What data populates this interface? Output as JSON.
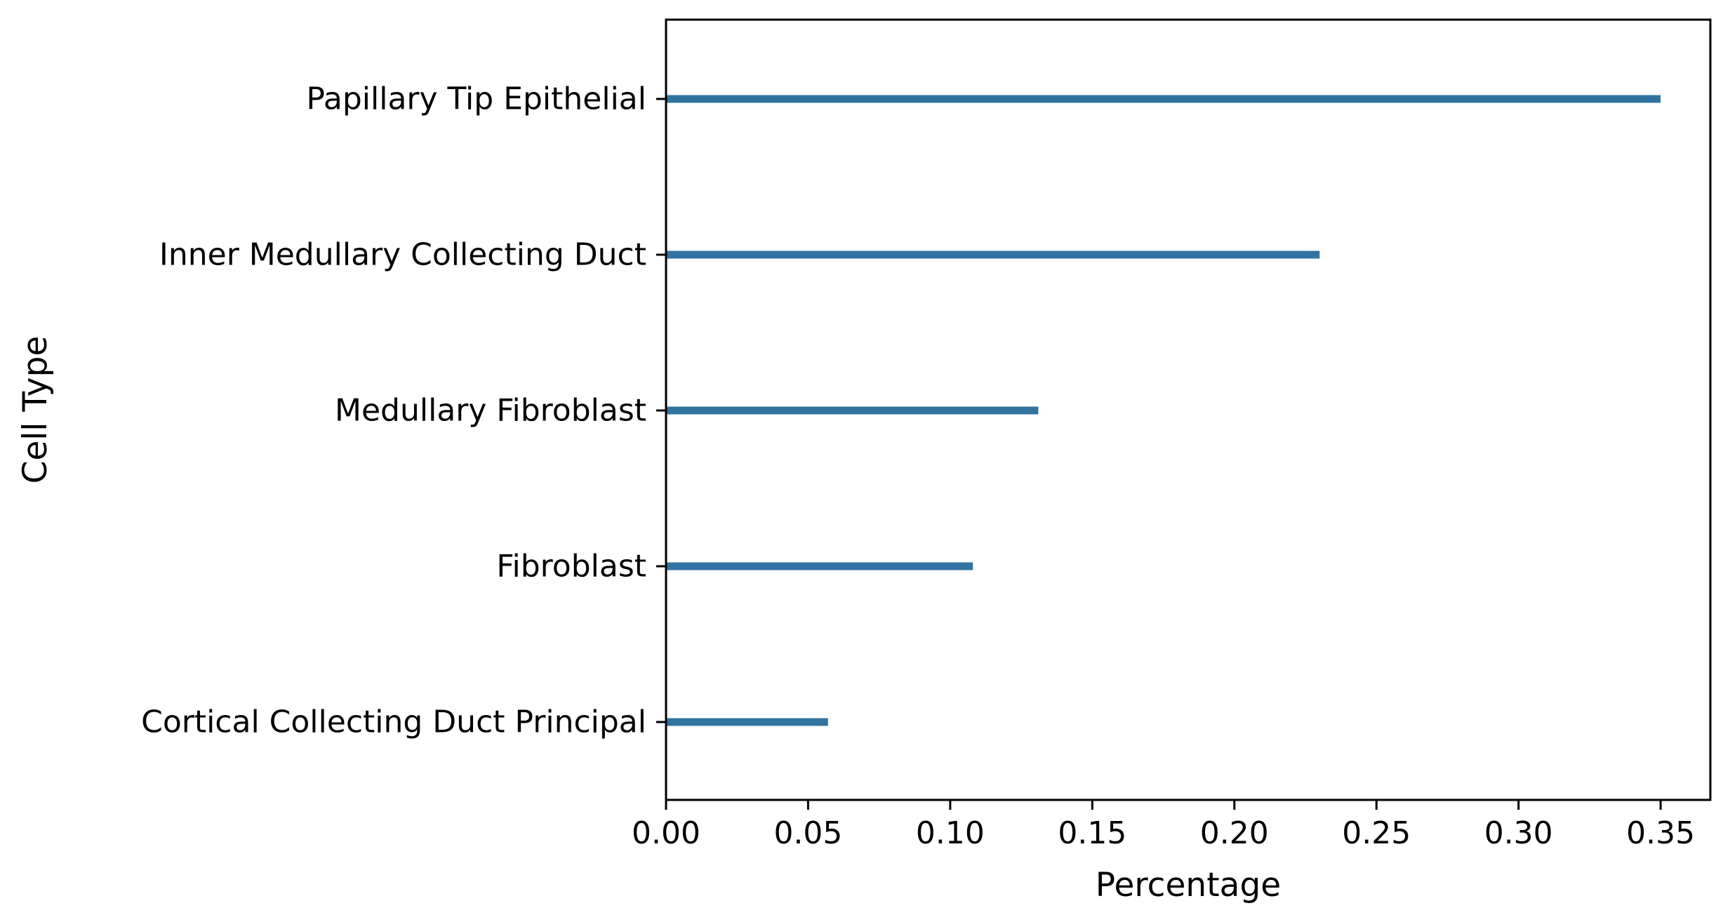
{
  "chart_data": {
    "type": "bar",
    "orientation": "horizontal",
    "title": "",
    "xlabel": "Percentage",
    "ylabel": "Cell Type",
    "categories": [
      "Papillary Tip Epithelial",
      "Inner Medullary Collecting Duct",
      "Medullary Fibroblast",
      "Fibroblast",
      "Cortical Collecting Duct Principal"
    ],
    "values": [
      0.35,
      0.23,
      0.131,
      0.108,
      0.057
    ],
    "xlim": [
      0,
      0.3675
    ],
    "xticks": [
      0.0,
      0.05,
      0.1,
      0.15,
      0.2,
      0.25,
      0.3,
      0.35
    ],
    "xtick_labels": [
      "0.00",
      "0.05",
      "0.10",
      "0.15",
      "0.20",
      "0.25",
      "0.30",
      "0.35"
    ],
    "bar_color": "#3274a1",
    "grid": false,
    "legend": "none"
  }
}
